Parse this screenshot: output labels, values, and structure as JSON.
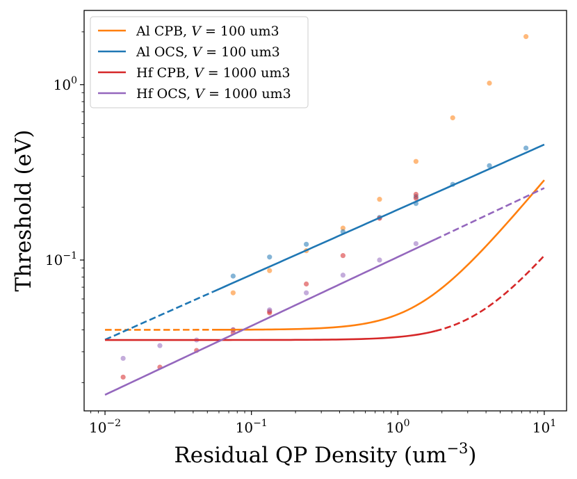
{
  "chart_data": {
    "type": "line",
    "xscale": "log",
    "yscale": "log",
    "xlabel_main": "Residual QP Density (um",
    "xlabel_sup": "−3",
    "xlabel_end": ")",
    "ylabel": "Threshold (eV)",
    "xlim": [
      0.0072,
      14.2
    ],
    "ylim": [
      0.0138,
      2.65
    ],
    "x_ticks": [
      {
        "value": 0.01,
        "base": "10",
        "exp": "−2"
      },
      {
        "value": 0.1,
        "base": "10",
        "exp": "−1"
      },
      {
        "value": 1,
        "base": "10",
        "exp": "0"
      },
      {
        "value": 10,
        "base": "10",
        "exp": "1"
      }
    ],
    "y_ticks": [
      {
        "value": 0.1,
        "base": "10",
        "exp": "−1"
      },
      {
        "value": 1,
        "base": "10",
        "exp": "0"
      }
    ],
    "legend_position": "top-left",
    "series": [
      {
        "name": "Al CPB",
        "legend_prefix": "Al CPB, ",
        "legend_var": "V",
        "legend_value": " = 100 um3",
        "color": "#ff7f0e",
        "points_x": [
          0.075,
          0.133,
          0.237,
          0.422,
          0.75,
          1.33,
          2.37,
          4.22,
          7.5
        ],
        "points_y": [
          0.065,
          0.087,
          0.113,
          0.152,
          0.222,
          0.365,
          0.647,
          1.02,
          1.88
        ],
        "fit_model": "sqrt",
        "fit_a": 0.0008,
        "fit_b": 0.04,
        "solid_range": [
          0.055,
          10
        ],
        "dashed_range": [
          0.01,
          0.055
        ]
      },
      {
        "name": "Al OCS",
        "legend_prefix": "Al OCS, ",
        "legend_var": "V",
        "legend_value": " = 100 um3",
        "color": "#1f77b4",
        "points_x": [
          0.075,
          0.133,
          0.237,
          0.422,
          0.75,
          1.33,
          1.33,
          2.37,
          4.22,
          7.5
        ],
        "points_y": [
          0.081,
          0.104,
          0.123,
          0.145,
          0.175,
          0.21,
          0.23,
          0.27,
          0.345,
          0.435
        ],
        "fit_model": "power",
        "fit_c": 0.1938,
        "fit_p": 0.371,
        "solid_range": [
          0.055,
          10
        ],
        "dashed_range": [
          0.01,
          0.055
        ]
      },
      {
        "name": "Hf CPB",
        "legend_prefix": "Hf CPB, ",
        "legend_var": "V",
        "legend_value": " = 1000 um3",
        "color": "#d62728",
        "points_x": [
          0.0133,
          0.0237,
          0.0422,
          0.075,
          0.075,
          0.133,
          0.133,
          0.237,
          0.422,
          0.75,
          1.33,
          1.33
        ],
        "points_y": [
          0.0215,
          0.0245,
          0.0305,
          0.0385,
          0.04,
          0.05,
          0.051,
          0.073,
          0.106,
          0.173,
          0.225,
          0.237
        ],
        "fit_model": "sqrt",
        "fit_a": 0.0001,
        "fit_b": 0.035,
        "solid_range": [
          0.01,
          1.8
        ],
        "dashed_range": [
          1.8,
          10
        ]
      },
      {
        "name": "Hf OCS",
        "legend_prefix": "Hf OCS, ",
        "legend_var": "V",
        "legend_value": " = 1000 um3",
        "color": "#9467bd",
        "points_x": [
          0.0133,
          0.0237,
          0.0422,
          0.075,
          0.133,
          0.237,
          0.422,
          0.75,
          1.33
        ],
        "points_y": [
          0.0275,
          0.0325,
          0.035,
          0.04,
          0.052,
          0.065,
          0.082,
          0.1,
          0.124
        ],
        "fit_model": "power",
        "fit_c": 0.1041,
        "fit_p": 0.393,
        "solid_range": [
          0.01,
          1.8
        ],
        "dashed_range": [
          1.8,
          10
        ]
      }
    ]
  }
}
